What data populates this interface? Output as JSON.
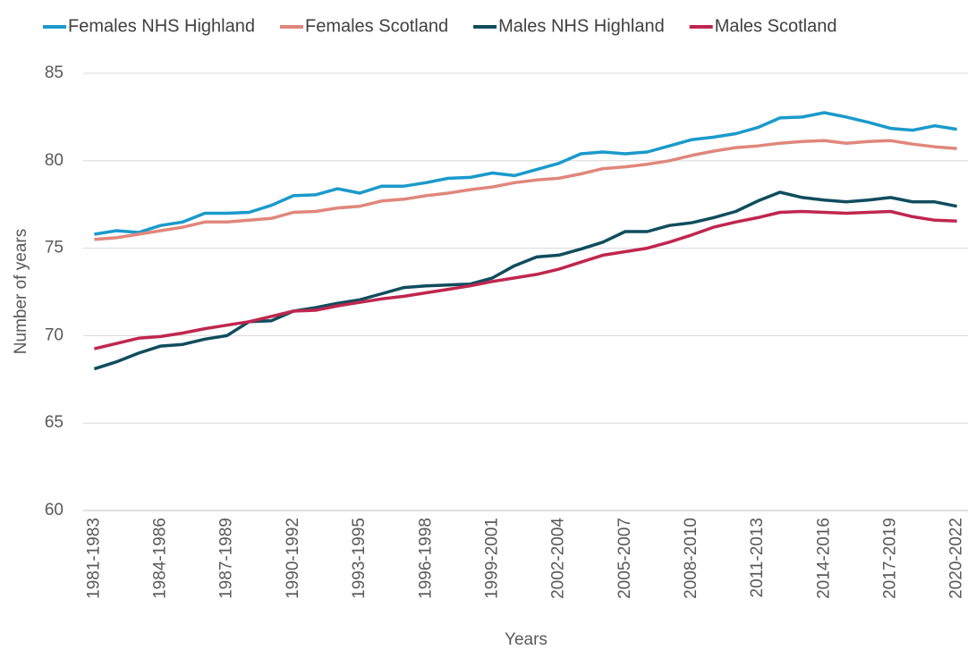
{
  "chart_data": {
    "type": "line",
    "x_label": "Years",
    "y_label": "Number  of years",
    "categories": [
      "1981-1983",
      null,
      null,
      "1984-1986",
      null,
      null,
      "1987-1989",
      null,
      null,
      "1990-1992",
      null,
      null,
      "1993-1995",
      null,
      null,
      "1996-1998",
      null,
      null,
      "1999-2001",
      null,
      null,
      "2002-2004",
      null,
      null,
      "2005-2007",
      null,
      null,
      "2008-2010",
      null,
      null,
      "2011-2013",
      null,
      null,
      "2014-2016",
      null,
      null,
      "2017-2019",
      null,
      null,
      "2020-2022"
    ],
    "series": [
      {
        "name": "Females NHS Highland",
        "color": "#1a9acb",
        "values": [
          75.8,
          76.0,
          75.9,
          76.3,
          76.5,
          77.0,
          77.0,
          77.05,
          77.45,
          78.0,
          78.05,
          78.4,
          78.15,
          78.55,
          78.55,
          78.75,
          79.0,
          79.05,
          79.3,
          79.15,
          79.5,
          79.85,
          80.4,
          80.5,
          80.4,
          80.5,
          80.85,
          81.2,
          81.35,
          81.55,
          81.9,
          82.45,
          82.5,
          82.75,
          82.5,
          82.2,
          81.85,
          81.75,
          82.0,
          81.8
        ]
      },
      {
        "name": "Females Scotland",
        "color": "#e0877b",
        "values": [
          75.5,
          75.6,
          75.8,
          76.0,
          76.2,
          76.5,
          76.5,
          76.6,
          76.7,
          77.05,
          77.1,
          77.3,
          77.4,
          77.7,
          77.8,
          78.0,
          78.15,
          78.35,
          78.5,
          78.75,
          78.9,
          79.0,
          79.25,
          79.55,
          79.65,
          79.8,
          80.0,
          80.3,
          80.55,
          80.75,
          80.85,
          81.0,
          81.1,
          81.15,
          81.0,
          81.1,
          81.15,
          80.95,
          80.8,
          80.7
        ]
      },
      {
        "name": "Males NHS Highland",
        "color": "#0f4d5e",
        "values": [
          68.1,
          68.5,
          69.0,
          69.4,
          69.5,
          69.8,
          70.0,
          70.8,
          70.85,
          71.4,
          71.6,
          71.85,
          72.05,
          72.4,
          72.75,
          72.85,
          72.9,
          72.95,
          73.3,
          74.0,
          74.5,
          74.6,
          74.95,
          75.35,
          75.95,
          75.95,
          76.3,
          76.45,
          76.75,
          77.1,
          77.7,
          78.2,
          77.9,
          77.75,
          77.65,
          77.75,
          77.9,
          77.65,
          77.65,
          77.4
        ]
      },
      {
        "name": "Males Scotland",
        "color": "#c0264f",
        "values": [
          69.25,
          69.55,
          69.85,
          69.95,
          70.15,
          70.4,
          70.6,
          70.8,
          71.1,
          71.4,
          71.45,
          71.7,
          71.9,
          72.1,
          72.25,
          72.45,
          72.65,
          72.85,
          73.1,
          73.3,
          73.5,
          73.8,
          74.2,
          74.6,
          74.8,
          75.0,
          75.35,
          75.75,
          76.2,
          76.5,
          76.75,
          77.05,
          77.1,
          77.05,
          77.0,
          77.05,
          77.1,
          76.8,
          76.6,
          76.55
        ]
      }
    ],
    "ylim": [
      60,
      85
    ],
    "yticks": [
      60,
      65,
      70,
      75,
      80,
      85
    ],
    "grid": true,
    "legend": "top"
  }
}
